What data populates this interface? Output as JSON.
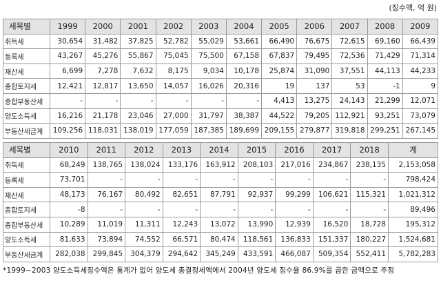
{
  "unit": "(징수액, 억 원)",
  "tables": [
    {
      "header": [
        "세목별",
        "1999",
        "2000",
        "2001",
        "2002",
        "2003",
        "2004",
        "2005",
        "2006",
        "2007",
        "2008",
        "2009"
      ],
      "rows": [
        [
          "취득세",
          "30,654",
          "31,482",
          "37,825",
          "52,782",
          "55,029",
          "53,661",
          "66,490",
          "76,675",
          "72,615",
          "69,160",
          "66,439"
        ],
        [
          "등록세",
          "43,267",
          "45,276",
          "55,867",
          "75,045",
          "75,500",
          "67,158",
          "67,837",
          "79,495",
          "72,536",
          "71,429",
          "71,314"
        ],
        [
          "재산세",
          "6,699",
          "7,278",
          "7,632",
          "8,175",
          "9,034",
          "10,178",
          "25,874",
          "31,090",
          "37,551",
          "44,113",
          "44,233"
        ],
        [
          "종합토지세",
          "12,421",
          "12,817",
          "13,650",
          "14,057",
          "16,026",
          "20,316",
          "19",
          "137",
          "53",
          "-1",
          "9"
        ],
        [
          "종합부동산세",
          "-",
          "-",
          "-",
          "-",
          "-",
          "-",
          "4,413",
          "13,275",
          "24,143",
          "21,299",
          "12,071"
        ],
        [
          "양도소득세",
          "16,216",
          "21,178",
          "23,046",
          "27,000",
          "31,797",
          "38,387",
          "44,522",
          "79,205",
          "112,921",
          "93,251",
          "73,079"
        ],
        [
          "부동산세금계",
          "109,256",
          "118,031",
          "138,019",
          "177,059",
          "187,385",
          "189,699",
          "209,155",
          "279,877",
          "319,818",
          "299,251",
          "267,145"
        ]
      ]
    },
    {
      "header": [
        "세목별",
        "2010",
        "2011",
        "2012",
        "2013",
        "2014",
        "2015",
        "2016",
        "2017",
        "2018",
        "계"
      ],
      "rows": [
        [
          "취득세",
          "68,249",
          "138,765",
          "138,024",
          "133,176",
          "163,912",
          "208,103",
          "217,016",
          "234,867",
          "238,135",
          "2,153,058"
        ],
        [
          "등록세",
          "73,701",
          "-",
          "-",
          "-",
          "-",
          "-",
          "-",
          "-",
          "-",
          "798,424"
        ],
        [
          "재산세",
          "48,173",
          "76,167",
          "80,492",
          "82,651",
          "87,791",
          "92,937",
          "99,299",
          "106,621",
          "115,321",
          "1,021,312"
        ],
        [
          "종합토지세",
          "-8",
          "-",
          "-",
          "-",
          "-",
          "-",
          "-",
          "-",
          "-",
          "89,496"
        ],
        [
          "종합부동산세",
          "10,289",
          "11,019",
          "11,311",
          "12,243",
          "13,072",
          "13,990",
          "12,939",
          "16,520",
          "18,728",
          "195,312"
        ],
        [
          "양도소득세",
          "81,633",
          "73,894",
          "74,552",
          "66,571",
          "80,474",
          "118,561",
          "136,833",
          "151,337",
          "180,227",
          "1,524,681"
        ],
        [
          "부동산세금계",
          "282,038",
          "299,845",
          "304,379",
          "294,642",
          "345,249",
          "433,591",
          "466,087",
          "509,354",
          "552,411",
          "5,782,283"
        ]
      ]
    }
  ],
  "footnote": "*1999~2003 양도소득세징수액은 통계가 없어 양도세 총결정세액에서 2004년 양도세 징수율 86.9%를 곱한 금액으로 추정"
}
